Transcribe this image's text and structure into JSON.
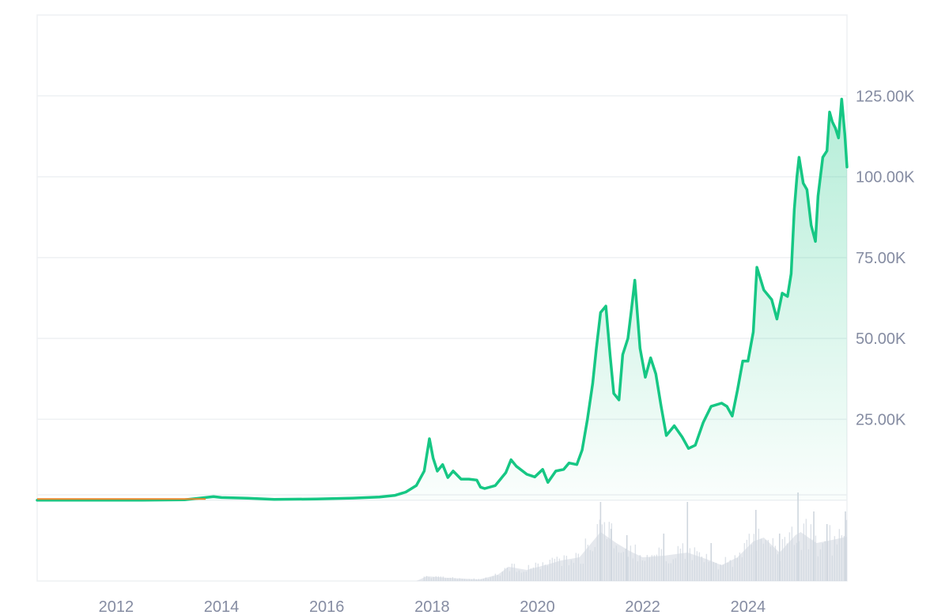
{
  "chart_data": {
    "type": "area",
    "title": "",
    "xlabel": "",
    "ylabel": "",
    "colors": {
      "line": "#16c784",
      "fill": "#16c784",
      "early_line": "#e8882d",
      "grid": "#eef0f3",
      "axis_text": "#858ca2",
      "volume": "#cfd6de"
    },
    "grid": true,
    "y_axis": {
      "position": "right",
      "ylim": [
        -25000,
        150000
      ],
      "ticks": [
        {
          "value": 25000,
          "label": "25.00K"
        },
        {
          "value": 50000,
          "label": "50.00K"
        },
        {
          "value": 75000,
          "label": "75.00K"
        },
        {
          "value": 100000,
          "label": "100.00K"
        },
        {
          "value": 125000,
          "label": "125.00K"
        }
      ]
    },
    "x_axis": {
      "xlim": [
        2010.5,
        2025.88
      ],
      "ticks": [
        {
          "value": 2012,
          "label": "2012"
        },
        {
          "value": 2014,
          "label": "2014"
        },
        {
          "value": 2016,
          "label": "2016"
        },
        {
          "value": 2018,
          "label": "2018"
        },
        {
          "value": 2020,
          "label": "2020"
        },
        {
          "value": 2022,
          "label": "2022"
        },
        {
          "value": 2024,
          "label": "2024"
        }
      ]
    },
    "series": [
      {
        "values": [
          [
            2010.5,
            0.1
          ],
          [
            2011.5,
            5
          ],
          [
            2012.5,
            10
          ],
          [
            2013.3,
            100
          ],
          [
            2013.85,
            1100
          ],
          [
            2014.0,
            800
          ],
          [
            2014.5,
            600
          ],
          [
            2015.0,
            250
          ],
          [
            2015.8,
            350
          ],
          [
            2016.5,
            650
          ],
          [
            2017.0,
            950
          ],
          [
            2017.3,
            1500
          ],
          [
            2017.5,
            2500
          ],
          [
            2017.7,
            4500
          ],
          [
            2017.85,
            9000
          ],
          [
            2017.95,
            19000
          ],
          [
            2018.02,
            13000
          ],
          [
            2018.1,
            9000
          ],
          [
            2018.2,
            11000
          ],
          [
            2018.3,
            7000
          ],
          [
            2018.4,
            9000
          ],
          [
            2018.55,
            6500
          ],
          [
            2018.7,
            6500
          ],
          [
            2018.85,
            6200
          ],
          [
            2018.92,
            4000
          ],
          [
            2019.0,
            3600
          ],
          [
            2019.2,
            4500
          ],
          [
            2019.4,
            8500
          ],
          [
            2019.5,
            12500
          ],
          [
            2019.6,
            10500
          ],
          [
            2019.8,
            8000
          ],
          [
            2019.95,
            7200
          ],
          [
            2020.1,
            9500
          ],
          [
            2020.2,
            5500
          ],
          [
            2020.35,
            9000
          ],
          [
            2020.5,
            9500
          ],
          [
            2020.6,
            11500
          ],
          [
            2020.75,
            11000
          ],
          [
            2020.85,
            15500
          ],
          [
            2020.95,
            25000
          ],
          [
            2021.05,
            36000
          ],
          [
            2021.12,
            47000
          ],
          [
            2021.2,
            58000
          ],
          [
            2021.3,
            60000
          ],
          [
            2021.38,
            45000
          ],
          [
            2021.45,
            33000
          ],
          [
            2021.55,
            31000
          ],
          [
            2021.62,
            45000
          ],
          [
            2021.72,
            50000
          ],
          [
            2021.78,
            58000
          ],
          [
            2021.85,
            68000
          ],
          [
            2021.95,
            47000
          ],
          [
            2022.05,
            38000
          ],
          [
            2022.15,
            44000
          ],
          [
            2022.25,
            39000
          ],
          [
            2022.35,
            29000
          ],
          [
            2022.45,
            20000
          ],
          [
            2022.6,
            23000
          ],
          [
            2022.75,
            19500
          ],
          [
            2022.87,
            16000
          ],
          [
            2023.0,
            17000
          ],
          [
            2023.15,
            24000
          ],
          [
            2023.3,
            29000
          ],
          [
            2023.5,
            30000
          ],
          [
            2023.6,
            29000
          ],
          [
            2023.7,
            26000
          ],
          [
            2023.8,
            34000
          ],
          [
            2023.9,
            43000
          ],
          [
            2024.0,
            43000
          ],
          [
            2024.1,
            52000
          ],
          [
            2024.17,
            72000
          ],
          [
            2024.3,
            65000
          ],
          [
            2024.45,
            62000
          ],
          [
            2024.55,
            56000
          ],
          [
            2024.65,
            64000
          ],
          [
            2024.75,
            63000
          ],
          [
            2024.82,
            70000
          ],
          [
            2024.88,
            90000
          ],
          [
            2024.93,
            100000
          ],
          [
            2024.97,
            106000
          ],
          [
            2025.05,
            98000
          ],
          [
            2025.12,
            96000
          ],
          [
            2025.2,
            85000
          ],
          [
            2025.28,
            80000
          ],
          [
            2025.33,
            94000
          ],
          [
            2025.42,
            106000
          ],
          [
            2025.5,
            108000
          ],
          [
            2025.55,
            120000
          ],
          [
            2025.6,
            117000
          ],
          [
            2025.66,
            115000
          ],
          [
            2025.72,
            112000
          ],
          [
            2025.78,
            124000
          ],
          [
            2025.84,
            113000
          ],
          [
            2025.88,
            103000
          ]
        ]
      }
    ],
    "volume": {
      "values": [
        [
          2010.5,
          0
        ],
        [
          2017.7,
          0
        ],
        [
          2017.9,
          6
        ],
        [
          2018.3,
          4
        ],
        [
          2018.9,
          2
        ],
        [
          2019.25,
          8
        ],
        [
          2019.45,
          18
        ],
        [
          2019.8,
          14
        ],
        [
          2020.25,
          22
        ],
        [
          2020.45,
          26
        ],
        [
          2020.8,
          30
        ],
        [
          2021.05,
          50
        ],
        [
          2021.2,
          62
        ],
        [
          2021.5,
          48
        ],
        [
          2021.75,
          38
        ],
        [
          2022.0,
          30
        ],
        [
          2022.4,
          32
        ],
        [
          2022.85,
          36
        ],
        [
          2023.2,
          28
        ],
        [
          2023.5,
          20
        ],
        [
          2023.8,
          30
        ],
        [
          2024.1,
          50
        ],
        [
          2024.3,
          55
        ],
        [
          2024.6,
          36
        ],
        [
          2024.9,
          58
        ],
        [
          2025.0,
          62
        ],
        [
          2025.3,
          48
        ],
        [
          2025.6,
          52
        ],
        [
          2025.88,
          56
        ]
      ],
      "spikes": [
        [
          2021.2,
          100
        ],
        [
          2021.4,
          66
        ],
        [
          2021.7,
          58
        ],
        [
          2022.4,
          60
        ],
        [
          2022.85,
          100
        ],
        [
          2023.3,
          48
        ],
        [
          2024.15,
          90
        ],
        [
          2024.6,
          60
        ],
        [
          2024.95,
          112
        ],
        [
          2025.25,
          88
        ],
        [
          2025.5,
          72
        ],
        [
          2025.85,
          88
        ]
      ]
    }
  }
}
